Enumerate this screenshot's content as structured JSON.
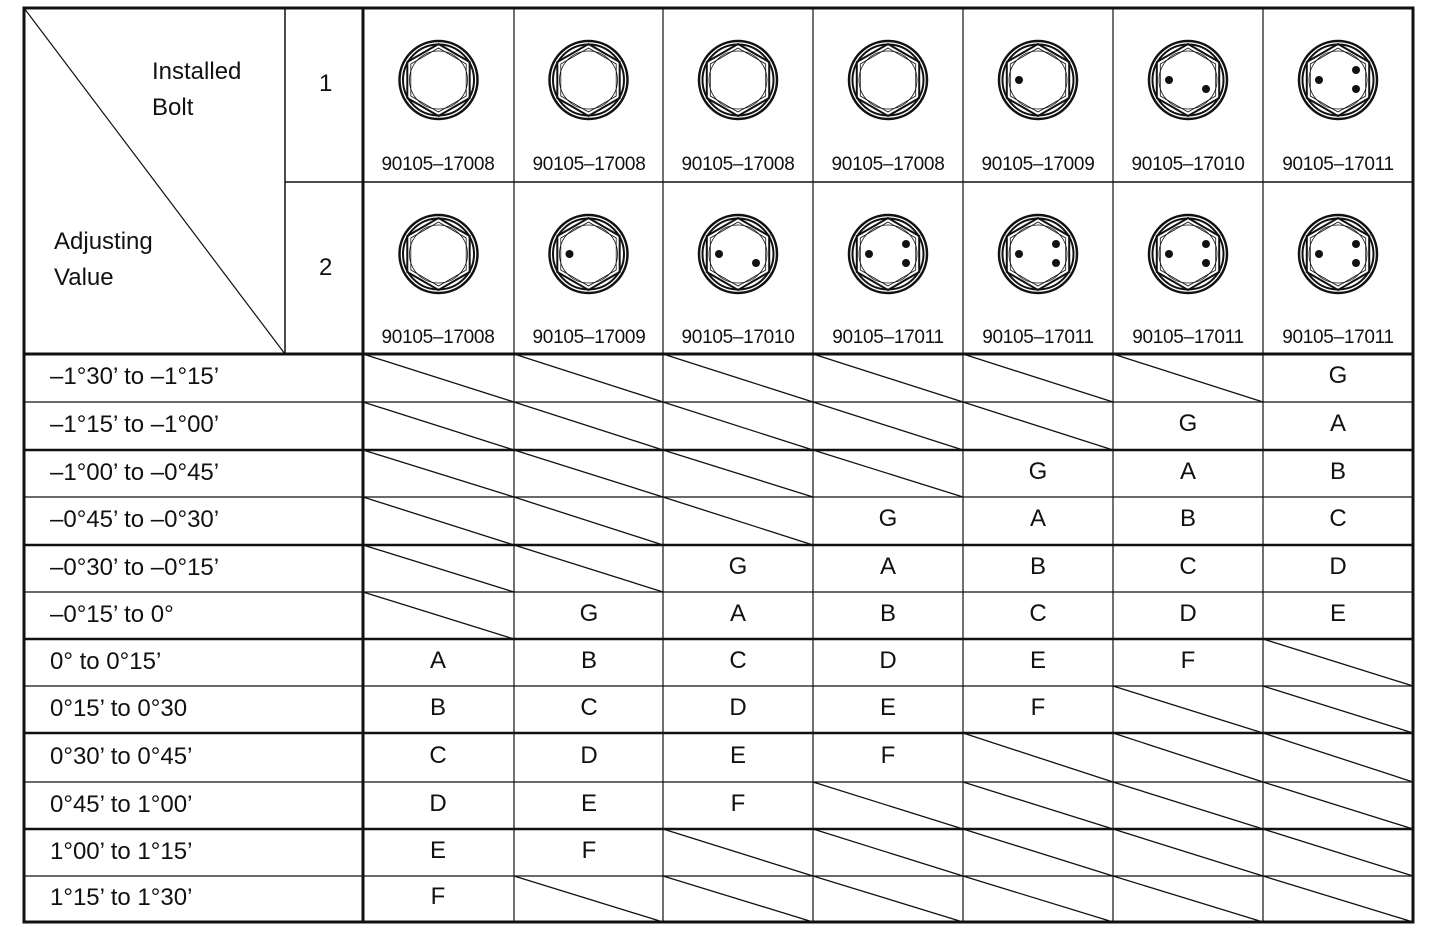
{
  "header": {
    "installed_bolt": "Installed\nBolt",
    "installed_bolt_line1": "Installed",
    "installed_bolt_line2": "Bolt",
    "adjusting_value_line1": "Adjusting",
    "adjusting_value_line2": "Value",
    "row1_number": "1",
    "row2_number": "2"
  },
  "bolts_row1": [
    {
      "part": "90105–17008",
      "dots": 0
    },
    {
      "part": "90105–17008",
      "dots": 0
    },
    {
      "part": "90105–17008",
      "dots": 0
    },
    {
      "part": "90105–17008",
      "dots": 0
    },
    {
      "part": "90105–17009",
      "dots": 1
    },
    {
      "part": "90105–17010",
      "dots": 2
    },
    {
      "part": "90105–17011",
      "dots": 3
    }
  ],
  "bolts_row2": [
    {
      "part": "90105–17008",
      "dots": 0
    },
    {
      "part": "90105–17009",
      "dots": 1
    },
    {
      "part": "90105–17010",
      "dots": 2
    },
    {
      "part": "90105–17011",
      "dots": 3
    },
    {
      "part": "90105–17011",
      "dots": 3
    },
    {
      "part": "90105–17011",
      "dots": 3
    },
    {
      "part": "90105–17011",
      "dots": 3
    }
  ],
  "rows": [
    {
      "label": "–1°30’ to –1°15’",
      "values": [
        "",
        "",
        "",
        "",
        "",
        "",
        "G"
      ]
    },
    {
      "label": "–1°15’ to –1°00’",
      "values": [
        "",
        "",
        "",
        "",
        "",
        "G",
        "A"
      ]
    },
    {
      "label": "–1°00’ to –0°45’",
      "values": [
        "",
        "",
        "",
        "",
        "G",
        "A",
        "B"
      ]
    },
    {
      "label": "–0°45’ to –0°30’",
      "values": [
        "",
        "",
        "",
        "G",
        "A",
        "B",
        "C"
      ]
    },
    {
      "label": "–0°30’ to –0°15’",
      "values": [
        "",
        "",
        "G",
        "A",
        "B",
        "C",
        "D"
      ]
    },
    {
      "label": "–0°15’ to 0°",
      "values": [
        "",
        "G",
        "A",
        "B",
        "C",
        "D",
        "E"
      ]
    },
    {
      "label": "0°  to 0°15’",
      "values": [
        "A",
        "B",
        "C",
        "D",
        "E",
        "F",
        ""
      ]
    },
    {
      "label": "0°15’ to 0°30",
      "values": [
        "B",
        "C",
        "D",
        "E",
        "F",
        "",
        ""
      ]
    },
    {
      "label": "0°30’ to 0°45’",
      "values": [
        "C",
        "D",
        "E",
        "F",
        "",
        "",
        ""
      ]
    },
    {
      "label": "0°45’ to 1°00’",
      "values": [
        "D",
        "E",
        "F",
        "",
        "",
        "",
        ""
      ]
    },
    {
      "label": "1°00’ to 1°15’",
      "values": [
        "E",
        "F",
        "",
        "",
        "",
        "",
        ""
      ]
    },
    {
      "label": "1°15’ to 1°30’",
      "values": [
        "F",
        "",
        "",
        "",
        "",
        "",
        ""
      ]
    }
  ]
}
